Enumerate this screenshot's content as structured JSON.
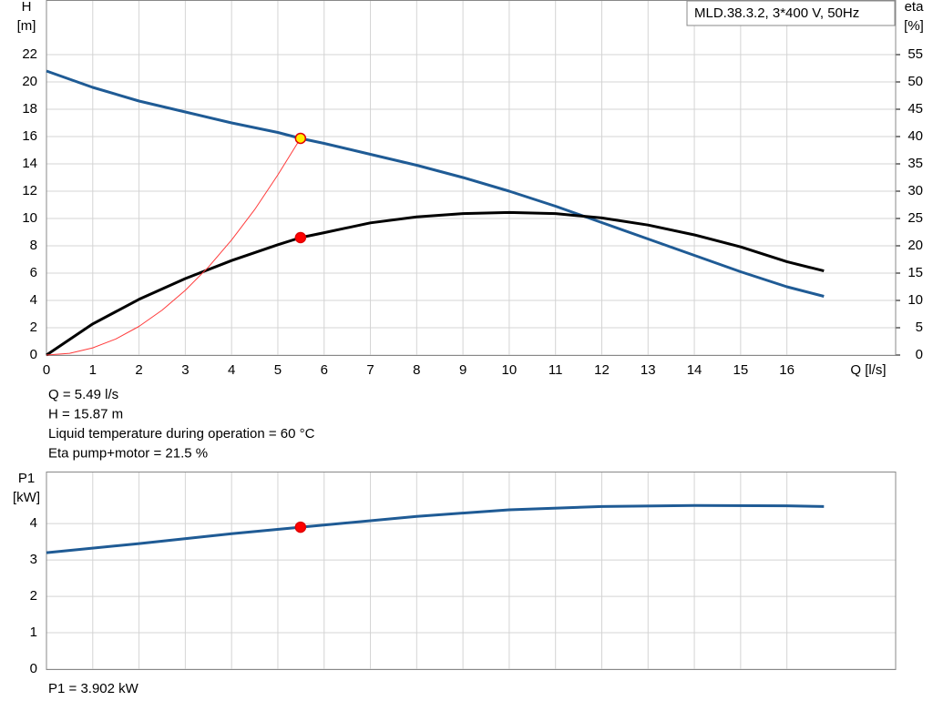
{
  "chart_data": [
    {
      "type": "line",
      "legend": "MLD.38.3.2, 3*400 V, 50Hz",
      "y_label": [
        "H",
        "[m]"
      ],
      "y2_label": [
        "eta",
        "[%]"
      ],
      "x_label": "Q [l/s]",
      "xlim": [
        0,
        18.35
      ],
      "ylim": [
        0,
        26
      ],
      "y2lim": [
        0,
        65
      ],
      "xticks": [
        0,
        1,
        2,
        3,
        4,
        5,
        6,
        7,
        8,
        9,
        10,
        11,
        12,
        13,
        14,
        15,
        16
      ],
      "yticks": [
        0,
        2,
        4,
        6,
        8,
        10,
        12,
        14,
        16,
        18,
        20,
        22
      ],
      "y2ticks": [
        0,
        5,
        10,
        15,
        20,
        25,
        30,
        35,
        40,
        45,
        50,
        55
      ],
      "grid": true,
      "series": [
        {
          "color": "#1f5b95",
          "width": 3,
          "x": [
            0,
            1,
            2,
            3,
            4,
            5,
            5.49,
            6,
            7,
            8,
            9,
            10,
            11,
            12,
            13,
            14,
            15,
            16,
            16.8
          ],
          "values": [
            20.8,
            19.6,
            18.6,
            17.8,
            17.0,
            16.3,
            15.87,
            15.5,
            14.7,
            13.9,
            13.0,
            12.0,
            10.9,
            9.7,
            8.5,
            7.3,
            6.1,
            5.0,
            4.3
          ]
        },
        {
          "color": "#000000",
          "width": 3,
          "axis": "y2",
          "x": [
            0,
            1,
            2,
            3,
            4,
            5,
            5.49,
            6,
            7,
            8,
            9,
            10,
            11,
            12,
            13,
            14,
            15,
            16,
            16.8
          ],
          "values": [
            0,
            5.7,
            10.2,
            14.0,
            17.3,
            20.2,
            21.5,
            22.4,
            24.2,
            25.3,
            25.9,
            26.1,
            25.9,
            25.1,
            23.8,
            22.0,
            19.8,
            17.1,
            15.4
          ]
        },
        {
          "color": "#ff3b3b",
          "width": 1,
          "x": [
            0,
            0.5,
            1,
            1.5,
            2,
            2.5,
            3,
            3.5,
            4,
            4.5,
            5,
            5.49
          ],
          "values": [
            0,
            0.13,
            0.53,
            1.18,
            2.1,
            3.29,
            4.74,
            6.45,
            8.43,
            10.66,
            13.2,
            15.87
          ]
        }
      ],
      "points": [
        {
          "x": 5.49,
          "y": 15.87,
          "color": "#ffee00"
        },
        {
          "x": 5.49,
          "y": 21.5,
          "axis": "y2",
          "color": "#ff0000"
        }
      ],
      "notes": [
        "Q = 5.49 l/s",
        "H = 15.87 m",
        "Liquid temperature during operation = 60 °C",
        "Eta pump+motor = 21.5 %"
      ]
    },
    {
      "type": "line",
      "y_label": [
        "P1",
        "[kW]"
      ],
      "xlim": [
        0,
        18.35
      ],
      "ylim": [
        0,
        5.43
      ],
      "yticks": [
        0,
        1,
        2,
        3,
        4
      ],
      "grid": true,
      "series": [
        {
          "color": "#1f5b95",
          "width": 3,
          "x": [
            0,
            2,
            4,
            5.49,
            8,
            10,
            12,
            14,
            16,
            16.8
          ],
          "values": [
            3.2,
            3.45,
            3.72,
            3.9,
            4.2,
            4.38,
            4.47,
            4.5,
            4.49,
            4.47
          ]
        }
      ],
      "points": [
        {
          "x": 5.49,
          "y": 3.902,
          "color": "#ff0000"
        }
      ],
      "notes": [
        "P1 = 3.902 kW"
      ]
    }
  ]
}
